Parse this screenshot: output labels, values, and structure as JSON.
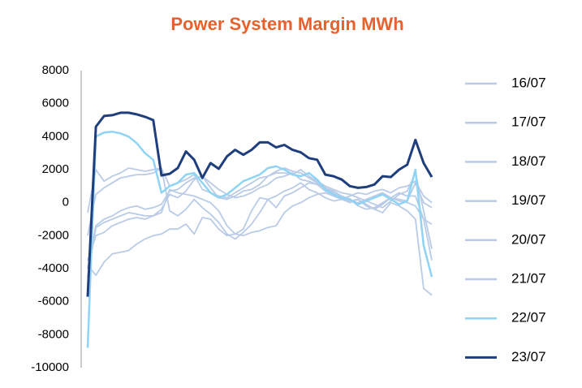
{
  "chart_data": {
    "type": "line",
    "title": "Power System Margin MWh",
    "categories": [
      null,
      null,
      null,
      null,
      null,
      null,
      null,
      null,
      null,
      null,
      null,
      null,
      null,
      null,
      null,
      null,
      null,
      null,
      null,
      null,
      null,
      null,
      null,
      null,
      null,
      null,
      null,
      null,
      null,
      null,
      null,
      null,
      null,
      null,
      null,
      null,
      null,
      null,
      null,
      null,
      null,
      null,
      null
    ],
    "ylim": [
      -10000,
      8000
    ],
    "yticks": [
      -10000,
      -8000,
      -6000,
      -4000,
      -2000,
      0,
      2000,
      4000,
      6000,
      8000
    ],
    "grid": false,
    "legend": "right",
    "series": [
      {
        "name": "16/07",
        "color": "#b9cbe6",
        "values": [
          -600,
          2000,
          1300,
          1600,
          1800,
          2100,
          2000,
          1900,
          2000,
          2100,
          -500,
          -800,
          -400,
          200,
          -300,
          -700,
          -1200,
          -1900,
          -2200,
          -1800,
          -1300,
          -600,
          200,
          400,
          700,
          900,
          1200,
          800,
          600,
          300,
          100,
          200,
          400,
          600,
          500,
          700,
          800,
          600,
          900,
          1000,
          1300,
          400,
          0
        ]
      },
      {
        "name": "17/07",
        "color": "#b9cbe6",
        "values": [
          -2000,
          500,
          900,
          1200,
          1500,
          1600,
          1700,
          1700,
          1800,
          2100,
          1000,
          1200,
          1400,
          1700,
          800,
          600,
          400,
          300,
          600,
          900,
          1200,
          1500,
          1600,
          1900,
          2100,
          1900,
          1800,
          1500,
          1200,
          900,
          600,
          300,
          100,
          0,
          200,
          400,
          600,
          300,
          200,
          100,
          1200,
          0,
          -300
        ]
      },
      {
        "name": "18/07",
        "color": "#b9cbe6",
        "values": [
          -4500,
          -1500,
          -1200,
          -1000,
          -800,
          -600,
          -700,
          -800,
          -800,
          -400,
          500,
          300,
          700,
          1400,
          1600,
          1200,
          800,
          500,
          300,
          400,
          600,
          900,
          1100,
          1500,
          1600,
          1800,
          1400,
          1300,
          1100,
          900,
          700,
          400,
          200,
          -200,
          -400,
          -300,
          0,
          300,
          600,
          400,
          400,
          -1000,
          -3500
        ]
      },
      {
        "name": "19/07",
        "color": "#b9cbe6",
        "values": [
          -3500,
          -2000,
          -1800,
          -1400,
          -1200,
          -1000,
          -900,
          -1000,
          -800,
          -600,
          800,
          600,
          500,
          400,
          200,
          0,
          -500,
          -1400,
          -1900,
          -2000,
          -1800,
          -1700,
          -1500,
          -1400,
          -600,
          -200,
          0,
          300,
          500,
          600,
          400,
          200,
          100,
          200,
          -200,
          -400,
          -100,
          300,
          100,
          0,
          -200,
          -1000,
          -1300
        ]
      },
      {
        "name": "20/07",
        "color": "#b9cbe6",
        "values": [
          -4000,
          -1400,
          -1000,
          -800,
          -500,
          -300,
          -200,
          -400,
          -300,
          -100,
          700,
          800,
          1200,
          1500,
          1600,
          900,
          300,
          200,
          400,
          700,
          800,
          1100,
          1600,
          1800,
          1800,
          1700,
          2000,
          1600,
          1300,
          1000,
          800,
          600,
          500,
          300,
          100,
          -100,
          -300,
          100,
          500,
          700,
          1800,
          -500,
          -2800
        ]
      },
      {
        "name": "21/07",
        "color": "#b9cbe6",
        "values": [
          -3800,
          -4400,
          -3600,
          -3100,
          -3000,
          -2900,
          -2500,
          -2200,
          -2000,
          -1900,
          -1600,
          -1600,
          -1300,
          -1900,
          -900,
          -1000,
          -1600,
          -2000,
          -1900,
          -1600,
          -500,
          300,
          200,
          -300,
          400,
          600,
          900,
          1200,
          1100,
          700,
          500,
          200,
          0,
          200,
          -100,
          -400,
          -600,
          0,
          -200,
          -500,
          -1000,
          -5200,
          -5600
        ]
      },
      {
        "name": "22/07",
        "color": "#8fd4f4",
        "values": [
          -8800,
          4000,
          4250,
          4300,
          4200,
          4000,
          3600,
          3000,
          2600,
          600,
          1000,
          1200,
          1700,
          1800,
          1200,
          600,
          300,
          500,
          900,
          1300,
          1500,
          1700,
          2100,
          2200,
          2000,
          1700,
          1600,
          1800,
          1400,
          800,
          500,
          300,
          200,
          -100,
          100,
          300,
          500,
          200,
          -100,
          100,
          2000,
          -2600,
          -4500
        ]
      },
      {
        "name": "23/07",
        "color": "#1f3e7c",
        "values": [
          -5700,
          4600,
          5250,
          5300,
          5450,
          5450,
          5350,
          5200,
          5000,
          1650,
          1750,
          2100,
          3100,
          2600,
          1500,
          2400,
          2050,
          2800,
          3200,
          2900,
          3200,
          3650,
          3650,
          3350,
          3500,
          3200,
          3050,
          2700,
          2600,
          1700,
          1600,
          1400,
          1000,
          900,
          950,
          1100,
          1600,
          1550,
          2000,
          2300,
          3800,
          2400,
          1550
        ]
      }
    ]
  }
}
